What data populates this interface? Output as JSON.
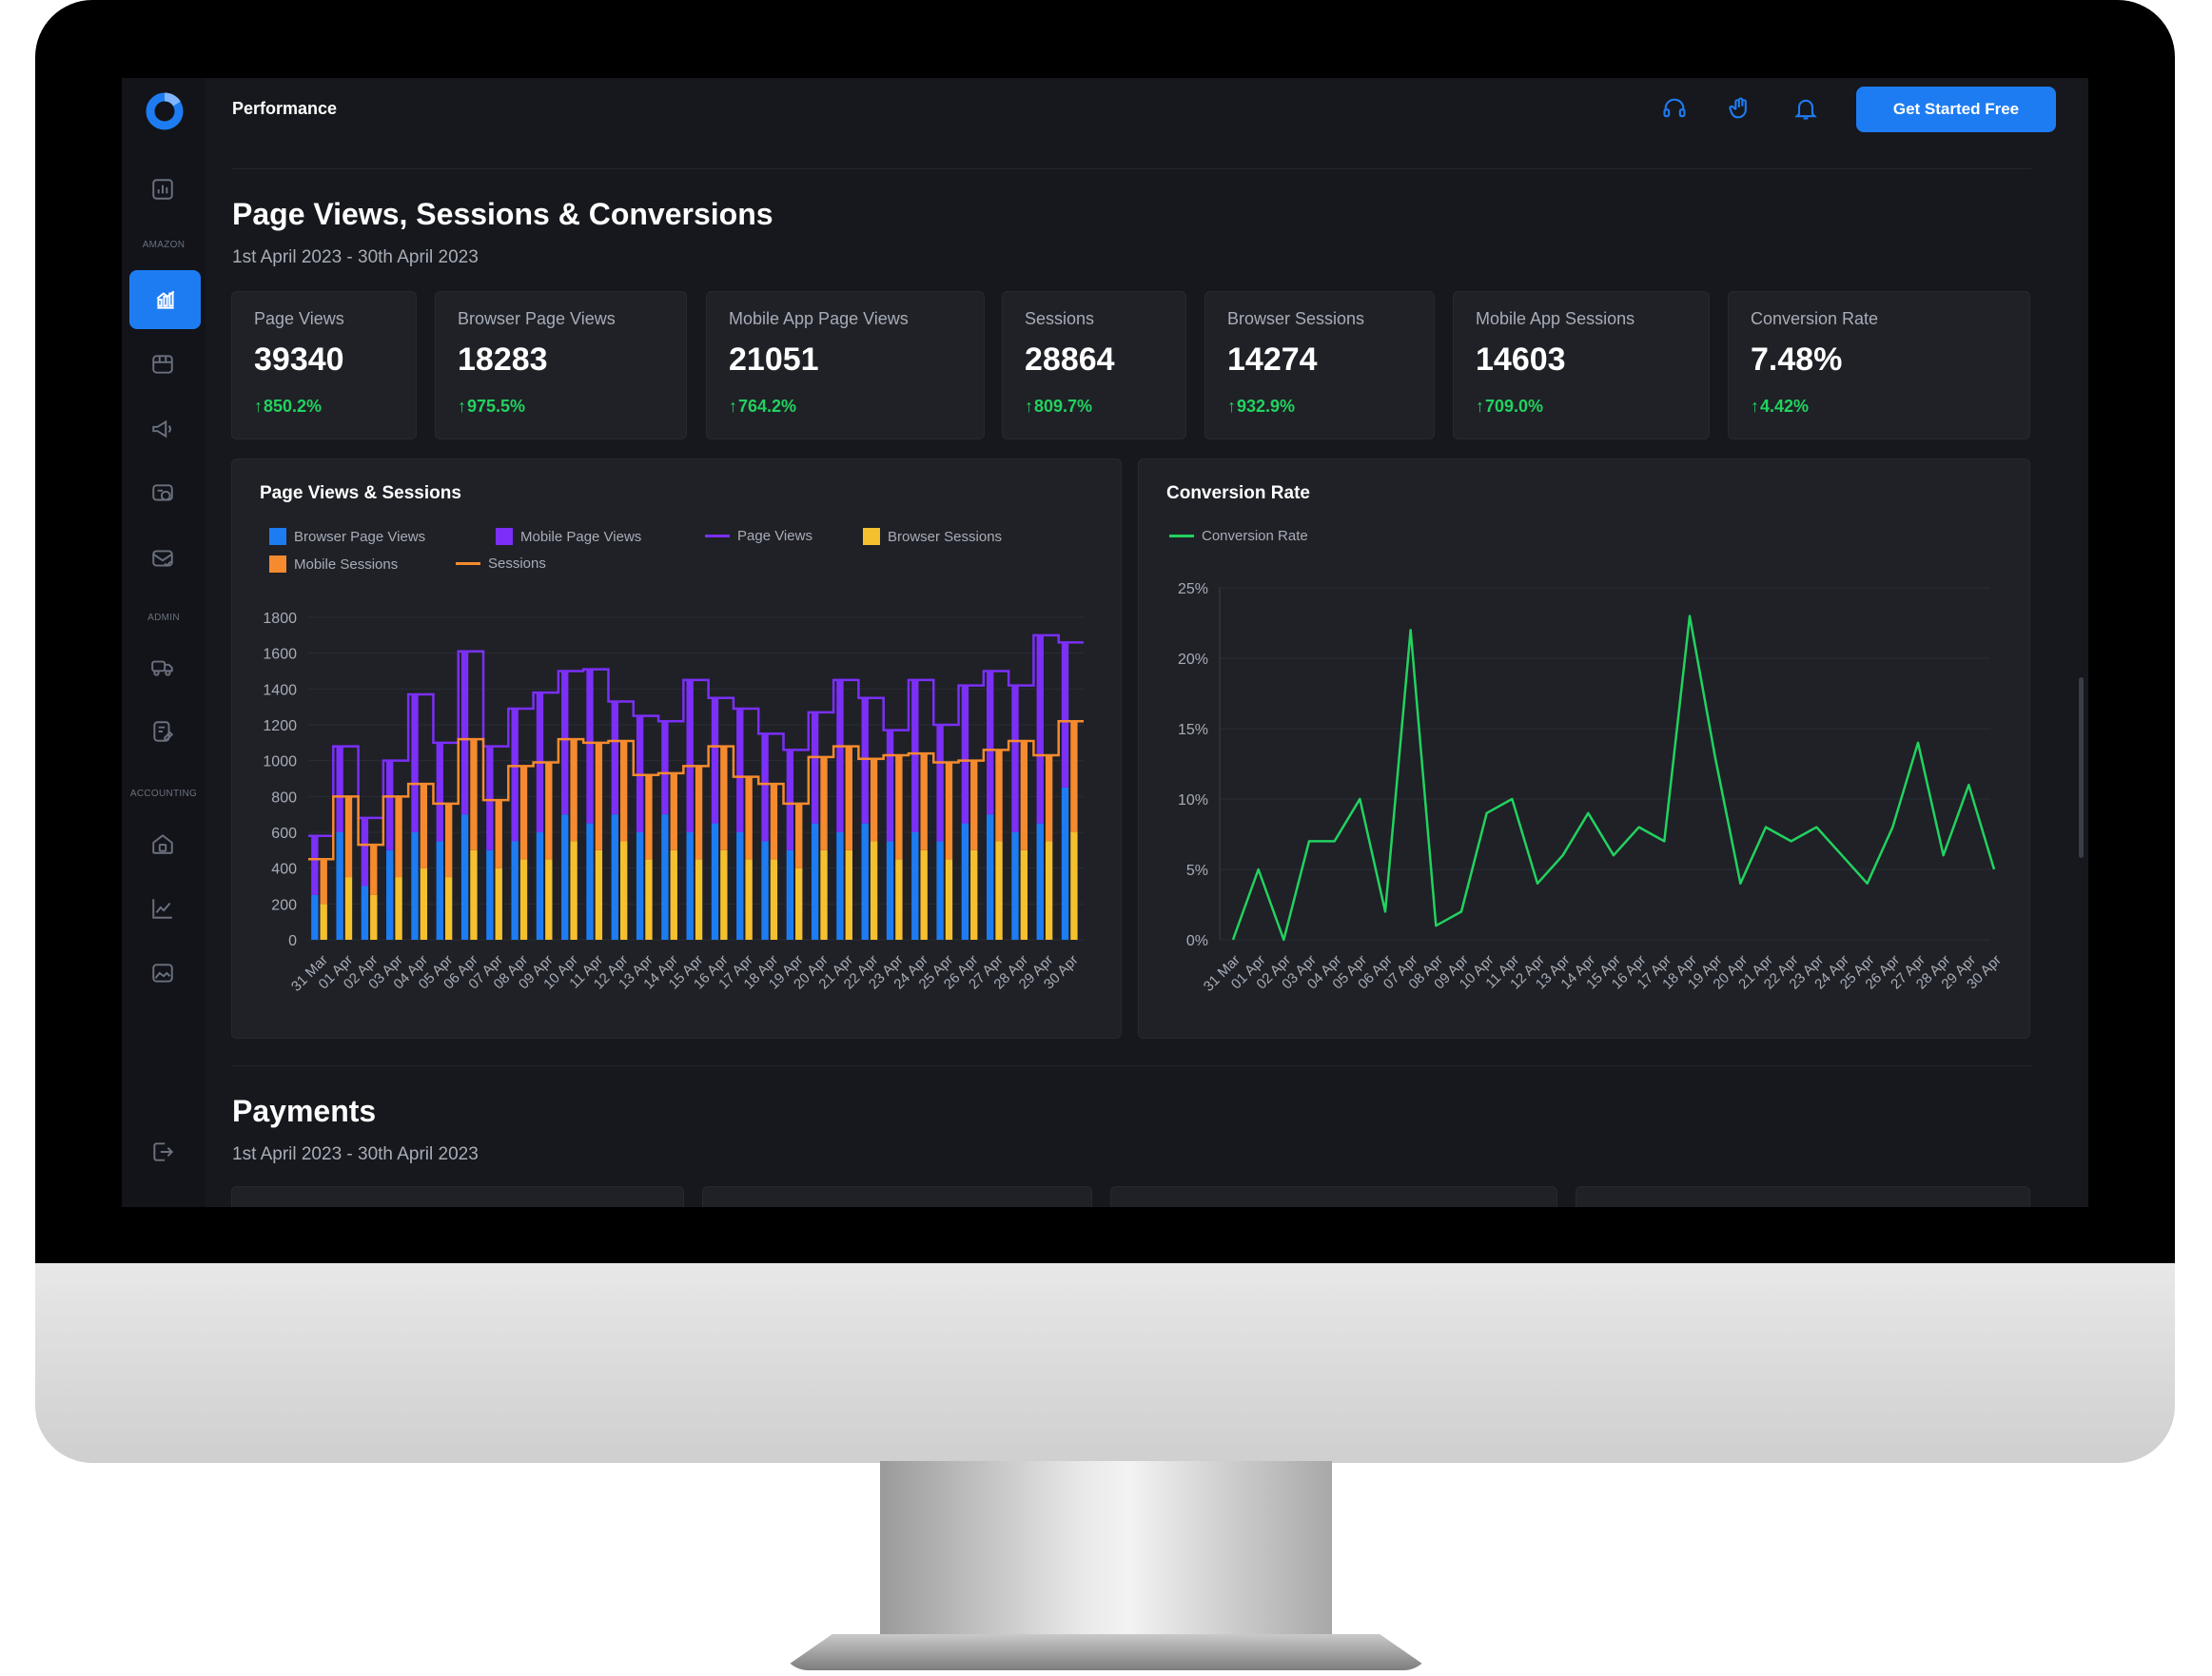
{
  "app": {
    "title": "Performance",
    "cta_label": "Get Started Free"
  },
  "sidebar": {
    "section_labels": [
      "AMAZON",
      "ADMIN",
      "ACCOUNTING"
    ]
  },
  "section1": {
    "title": "Page Views, Sessions & Conversions",
    "subtitle": "1st April 2023 - 30th April 2023"
  },
  "stats": [
    {
      "label": "Page Views",
      "value": "39340",
      "change": "850.2%"
    },
    {
      "label": "Browser Page Views",
      "value": "18283",
      "change": "975.5%"
    },
    {
      "label": "Mobile App Page Views",
      "value": "21051",
      "change": "764.2%"
    },
    {
      "label": "Sessions",
      "value": "28864",
      "change": "809.7%"
    },
    {
      "label": "Browser Sessions",
      "value": "14274",
      "change": "932.9%"
    },
    {
      "label": "Mobile App Sessions",
      "value": "14603",
      "change": "709.0%"
    },
    {
      "label": "Conversion Rate",
      "value": "7.48%",
      "change": "4.42%"
    }
  ],
  "colors": {
    "accent": "#1e7cf2",
    "browser_page_views": "#1e7cf2",
    "mobile_page_views": "#7b2ff7",
    "browser_sessions": "#f5c02e",
    "mobile_sessions": "#f58a2e",
    "conversion": "#22d25f",
    "positive": "#22d25f"
  },
  "section2": {
    "title": "Payments",
    "subtitle": "1st April 2023 - 30th April 2023"
  },
  "chart_data": [
    {
      "type": "bar",
      "title": "Page Views & Sessions",
      "legend": [
        "Browser Page Views",
        "Mobile Page Views",
        "Page Views",
        "Browser Sessions",
        "Mobile Sessions",
        "Sessions"
      ],
      "legend_placement": "top-left",
      "categories": [
        "31 Mar",
        "01 Apr",
        "02 Apr",
        "03 Apr",
        "04 Apr",
        "05 Apr",
        "06 Apr",
        "07 Apr",
        "08 Apr",
        "09 Apr",
        "10 Apr",
        "11 Apr",
        "12 Apr",
        "13 Apr",
        "14 Apr",
        "15 Apr",
        "16 Apr",
        "17 Apr",
        "18 Apr",
        "19 Apr",
        "20 Apr",
        "21 Apr",
        "22 Apr",
        "23 Apr",
        "24 Apr",
        "25 Apr",
        "26 Apr",
        "27 Apr",
        "28 Apr",
        "29 Apr",
        "30 Apr"
      ],
      "y_ticks": [
        0,
        200,
        400,
        600,
        800,
        1000,
        1200,
        1400,
        1600,
        1800
      ],
      "ylim": [
        0,
        1800
      ],
      "grid": true,
      "series": [
        {
          "name": "Browser Page Views",
          "kind": "stacked-bar",
          "values": [
            250,
            600,
            300,
            500,
            600,
            550,
            700,
            500,
            550,
            600,
            700,
            650,
            700,
            600,
            700,
            600,
            650,
            600,
            550,
            500,
            650,
            600,
            650,
            550,
            600,
            550,
            650,
            700,
            600,
            650,
            850
          ]
        },
        {
          "name": "Mobile Page Views",
          "kind": "stacked-bar",
          "values": [
            330,
            480,
            380,
            500,
            770,
            550,
            910,
            580,
            740,
            780,
            800,
            860,
            630,
            650,
            520,
            850,
            700,
            690,
            600,
            560,
            620,
            850,
            700,
            620,
            850,
            650,
            770,
            800,
            820,
            1050,
            810
          ]
        },
        {
          "name": "Page Views",
          "kind": "line",
          "values": [
            580,
            1080,
            680,
            1000,
            1370,
            1100,
            1610,
            1080,
            1290,
            1380,
            1500,
            1510,
            1330,
            1250,
            1220,
            1450,
            1350,
            1290,
            1150,
            1060,
            1270,
            1450,
            1350,
            1170,
            1450,
            1200,
            1420,
            1500,
            1420,
            1700,
            1660
          ]
        },
        {
          "name": "Browser Sessions",
          "kind": "stacked-bar",
          "values": [
            200,
            350,
            250,
            350,
            400,
            350,
            500,
            400,
            450,
            450,
            550,
            500,
            550,
            450,
            500,
            450,
            500,
            450,
            450,
            400,
            500,
            500,
            550,
            450,
            500,
            450,
            500,
            550,
            500,
            550,
            600
          ]
        },
        {
          "name": "Mobile Sessions",
          "kind": "stacked-bar",
          "values": [
            250,
            450,
            280,
            450,
            470,
            410,
            620,
            380,
            520,
            540,
            570,
            600,
            560,
            470,
            430,
            520,
            580,
            460,
            420,
            360,
            520,
            580,
            460,
            580,
            540,
            540,
            500,
            510,
            610,
            480,
            620
          ]
        },
        {
          "name": "Sessions",
          "kind": "line",
          "values": [
            450,
            800,
            530,
            800,
            870,
            760,
            1120,
            780,
            970,
            990,
            1120,
            1100,
            1110,
            920,
            930,
            970,
            1080,
            910,
            870,
            760,
            1020,
            1080,
            1010,
            1030,
            1040,
            990,
            1000,
            1060,
            1110,
            1030,
            1220
          ]
        }
      ]
    },
    {
      "type": "line",
      "title": "Conversion Rate",
      "legend": [
        "Conversion Rate"
      ],
      "legend_placement": "top-left",
      "categories": [
        "31 Mar",
        "01 Apr",
        "02 Apr",
        "03 Apr",
        "04 Apr",
        "05 Apr",
        "06 Apr",
        "07 Apr",
        "08 Apr",
        "09 Apr",
        "10 Apr",
        "11 Apr",
        "12 Apr",
        "13 Apr",
        "14 Apr",
        "15 Apr",
        "16 Apr",
        "17 Apr",
        "18 Apr",
        "19 Apr",
        "20 Apr",
        "21 Apr",
        "22 Apr",
        "23 Apr",
        "24 Apr",
        "25 Apr",
        "26 Apr",
        "27 Apr",
        "28 Apr",
        "29 Apr",
        "30 Apr"
      ],
      "y_ticks": [
        "0%",
        "5%",
        "10%",
        "15%",
        "20%",
        "25%"
      ],
      "ylim": [
        0,
        25
      ],
      "grid": true,
      "series": [
        {
          "name": "Conversion Rate",
          "values": [
            0,
            5,
            0,
            7,
            7,
            10,
            2,
            22,
            1,
            2,
            9,
            10,
            4,
            6,
            9,
            6,
            8,
            7,
            23,
            13,
            4,
            8,
            7,
            8,
            6,
            4,
            8,
            14,
            6,
            11,
            5
          ]
        }
      ]
    }
  ]
}
